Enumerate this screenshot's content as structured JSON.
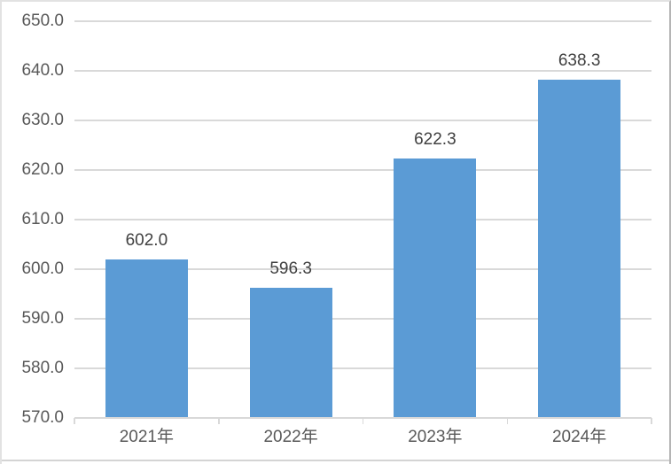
{
  "chart_data": {
    "type": "bar",
    "title": "",
    "xlabel": "",
    "ylabel": "",
    "categories": [
      "2021年",
      "2022年",
      "2023年",
      "2024年"
    ],
    "values": [
      602.0,
      596.3,
      622.3,
      638.3
    ],
    "value_labels": [
      "602.0",
      "596.3",
      "622.3",
      "638.3"
    ],
    "yticks": [
      "650.0",
      "640.0",
      "630.0",
      "620.0",
      "610.0",
      "600.0",
      "590.0",
      "580.0",
      "570.0"
    ],
    "ylim": [
      570.0,
      650.0
    ],
    "ytick_step": 10.0,
    "grid": true,
    "legend": false,
    "colors": {
      "bar": "#5B9BD5",
      "gridline": "#D9D9D9",
      "axis_line": "#D9D9D9",
      "axis_text": "#595959",
      "value_label_text": "#404040",
      "background": "#FFFFFF"
    }
  }
}
